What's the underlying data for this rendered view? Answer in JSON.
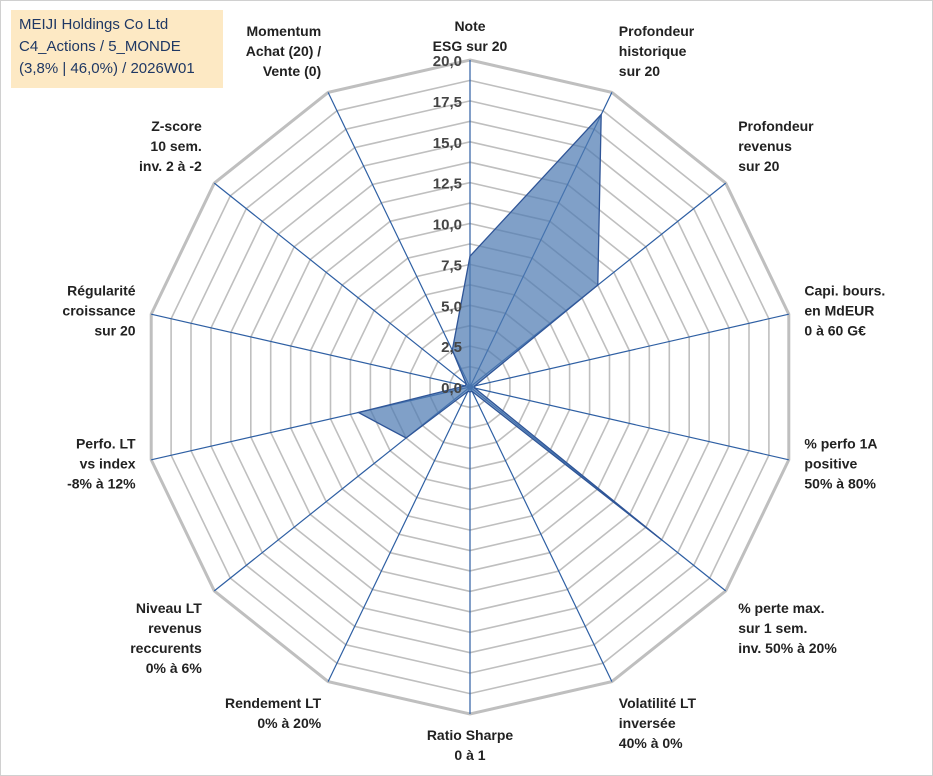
{
  "info": {
    "line1": "MEIJI Holdings Co Ltd",
    "line2": "C4_Actions / 5_MONDE",
    "line3": "(3,8% | 46,0%) / 2026W01"
  },
  "colors": {
    "grid": "#bfbfbf",
    "spokes": "#2e5fa3",
    "fill": "#4f7cb3",
    "stroke": "#2f5597"
  },
  "chart_data": {
    "type": "radar",
    "rmax": 20,
    "tick_step": 1.25,
    "tick_labels": [
      "0,0",
      "2,5",
      "5,0",
      "7,5",
      "10,0",
      "12,5",
      "15,0",
      "17,5",
      "20,0"
    ],
    "grid": true,
    "legend": "none",
    "axes": [
      {
        "label": [
          "Note",
          "ESG sur 20"
        ],
        "value": 8
      },
      {
        "label": [
          "Profondeur",
          "historique",
          "sur 20"
        ],
        "value": 18.5
      },
      {
        "label": [
          "Profondeur",
          "revenus",
          "sur 20"
        ],
        "value": 10
      },
      {
        "label": [
          "Capi. bours.",
          "en MdEUR",
          "0 à 60 G€"
        ],
        "value": 0.3
      },
      {
        "label": [
          "% perfo 1A",
          "positive",
          "50% à 80%"
        ],
        "value": 0.3
      },
      {
        "label": [
          "% perte max.",
          "sur 1 sem.",
          "inv. 50% à 20%"
        ],
        "value": 15
      },
      {
        "label": [
          "Volatilité LT",
          "inversée",
          "40% à 0%"
        ],
        "value": 0.3
      },
      {
        "label": [
          "Ratio Sharpe",
          "0 à 1"
        ],
        "value": 0.3
      },
      {
        "label": [
          "Rendement LT",
          "0% à 20%"
        ],
        "value": 0.3
      },
      {
        "label": [
          "Niveau LT",
          "revenus",
          "reccurents",
          "0% à 6%"
        ],
        "value": 5
      },
      {
        "label": [
          "Perfo. LT",
          "vs index",
          "-8% à 12%"
        ],
        "value": 7
      },
      {
        "label": [
          "Régularité",
          "croissance",
          "sur 20"
        ],
        "value": 0.3
      },
      {
        "label": [
          "Z-score",
          "10 sem.",
          "inv. 2 à -2"
        ],
        "value": 0.3
      },
      {
        "label": [
          "Momentum",
          "Achat (20) /",
          "Vente (0)"
        ],
        "value": 2.5
      }
    ]
  }
}
